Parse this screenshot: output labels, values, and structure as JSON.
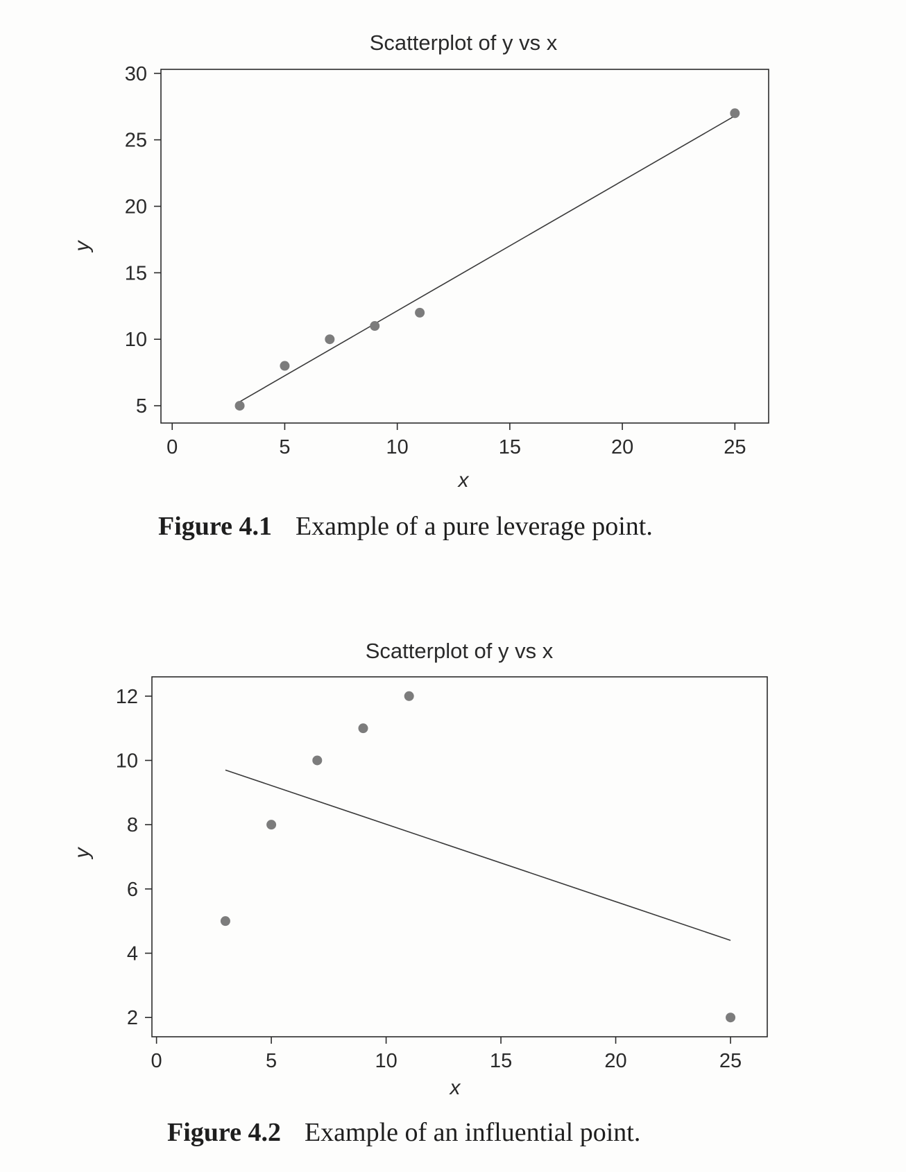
{
  "chart_data": [
    {
      "type": "scatter",
      "title": "Scatterplot of y vs x",
      "xlabel": "x",
      "ylabel": "y",
      "xlim": [
        -0.5,
        26.5
      ],
      "ylim": [
        3.7,
        30.3
      ],
      "xticks": [
        0,
        5,
        10,
        15,
        20,
        25
      ],
      "yticks": [
        5,
        10,
        15,
        20,
        25,
        30
      ],
      "grid": false,
      "series": [
        {
          "x": [
            3,
            5,
            7,
            9,
            11,
            25
          ],
          "y": [
            5,
            8,
            10,
            11,
            12,
            27
          ]
        }
      ],
      "fit_line": {
        "x": [
          3,
          25
        ],
        "y": [
          5.3,
          26.8
        ]
      }
    },
    {
      "type": "scatter",
      "title": "Scatterplot of y vs x",
      "xlabel": "x",
      "ylabel": "y",
      "xlim": [
        -0.2,
        26.6
      ],
      "ylim": [
        1.4,
        12.6
      ],
      "xticks": [
        0,
        5,
        10,
        15,
        20,
        25
      ],
      "yticks": [
        2,
        4,
        6,
        8,
        10,
        12
      ],
      "grid": false,
      "series": [
        {
          "x": [
            3,
            5,
            7,
            9,
            11,
            25
          ],
          "y": [
            5,
            8,
            10,
            11,
            12,
            2
          ]
        }
      ],
      "fit_line": {
        "x": [
          3,
          25
        ],
        "y": [
          9.7,
          4.4
        ]
      }
    }
  ],
  "captions": [
    {
      "number": "Figure 4.1",
      "text": "Example of a pure leverage point."
    },
    {
      "number": "Figure 4.2",
      "text": "Example of an influential point."
    }
  ],
  "colors": {
    "marker": "#7c7c7c",
    "line": "#3a3a3a",
    "frame": "#2a2a2a"
  }
}
